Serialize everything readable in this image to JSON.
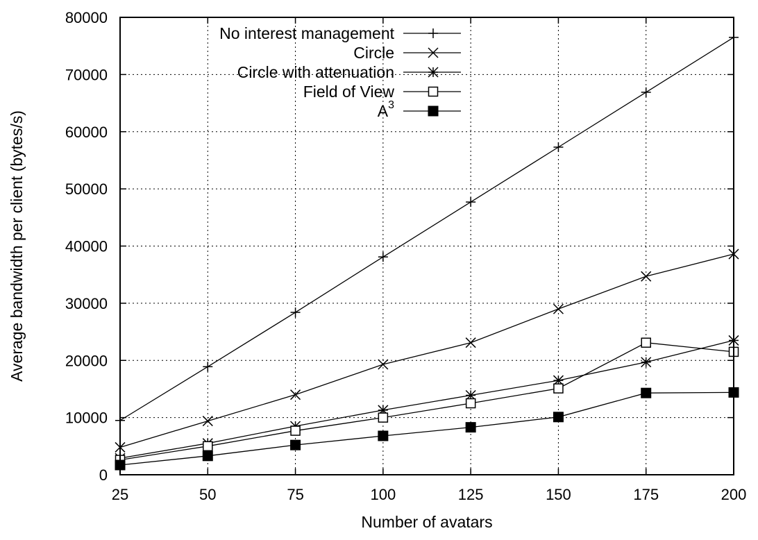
{
  "chart_data": {
    "type": "line",
    "xlabel": "Number of avatars",
    "ylabel": "Average bandwidth per client (bytes/s)",
    "x": [
      25,
      50,
      75,
      100,
      125,
      150,
      175,
      200
    ],
    "xlim": [
      25,
      200
    ],
    "ylim": [
      0,
      80000
    ],
    "xticks": [
      "25",
      "50",
      "75",
      "100",
      "125",
      "150",
      "175",
      "200"
    ],
    "yticks": [
      "0",
      "10000",
      "20000",
      "30000",
      "40000",
      "50000",
      "60000",
      "70000",
      "80000"
    ],
    "grid": true,
    "legend_position": "top-right",
    "series": [
      {
        "name": "No interest management",
        "marker": "plus",
        "values": [
          9500,
          18900,
          28400,
          38100,
          47700,
          57300,
          66900,
          76500
        ]
      },
      {
        "name": "Circle",
        "marker": "cross",
        "values": [
          4800,
          9400,
          14000,
          19300,
          23100,
          29000,
          34700,
          38600
        ]
      },
      {
        "name": "Circle with attenuation",
        "marker": "star",
        "values": [
          2900,
          5500,
          8500,
          11300,
          13900,
          16500,
          19700,
          23500
        ]
      },
      {
        "name": "Field of View",
        "marker": "open-square",
        "values": [
          2600,
          5000,
          7700,
          10000,
          12500,
          15100,
          23100,
          21500
        ]
      },
      {
        "name": "A",
        "name_superscript": "3",
        "marker": "filled-square",
        "values": [
          1700,
          3300,
          5200,
          6800,
          8300,
          10100,
          14300,
          14400
        ]
      }
    ]
  }
}
